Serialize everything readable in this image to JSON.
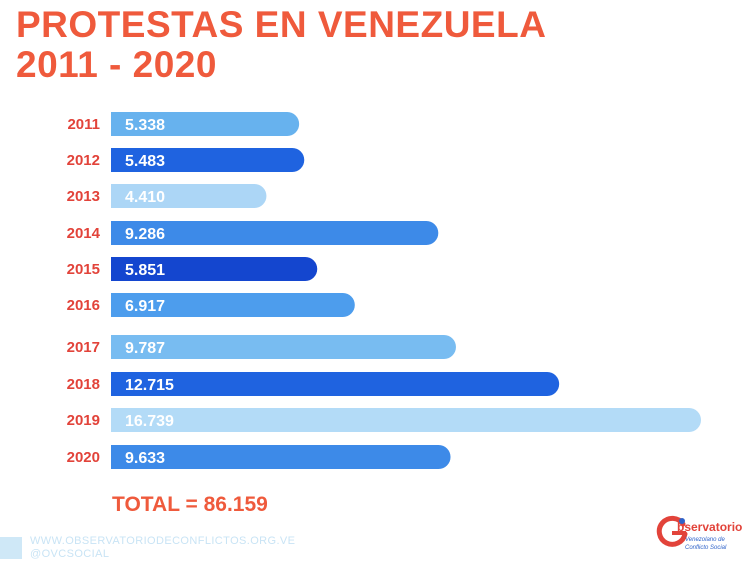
{
  "title": {
    "line1": "PROTESTAS EN VENEZUELA",
    "line2": "2011 - 2020"
  },
  "chart_data": {
    "type": "bar",
    "orientation": "horizontal",
    "categories": [
      "2011",
      "2012",
      "2013",
      "2014",
      "2015",
      "2016",
      "2017",
      "2018",
      "2019",
      "2020"
    ],
    "values": [
      5338,
      5483,
      4410,
      9286,
      5851,
      6917,
      9787,
      12715,
      16739,
      9633
    ],
    "value_labels": [
      "5.338",
      "5.483",
      "4.410",
      "9.286",
      "5.851",
      "6.917",
      "9.787",
      "12.715",
      "16.739",
      "9.633"
    ],
    "bar_colors": [
      "#67b2ee",
      "#1f63e0",
      "#acd6f6",
      "#3d8ae8",
      "#1446cf",
      "#4d9ded",
      "#78bcf1",
      "#1f63e0",
      "#b3dbf7",
      "#3d8ae8"
    ],
    "title": "PROTESTAS EN VENEZUELA 2011 - 2020",
    "xlabel": "",
    "ylabel": "",
    "xlim": [
      0,
      16739
    ],
    "grid": false,
    "legend": "none"
  },
  "total": {
    "text": "TOTAL = 86.159"
  },
  "footer": {
    "website": "WWW.OBSERVATORIODECONFLICTOS.ORG.VE",
    "handle": "@OVCSOCIAL"
  },
  "logo": {
    "name": "bservatorio",
    "line1": "Venezolano de",
    "line2": "Conflicto Social",
    "colors": {
      "primary": "#e2433a",
      "secondary": "#2e62c9"
    }
  },
  "colors": {
    "accent": "#ef5a3c",
    "year_label": "#e2433a"
  }
}
